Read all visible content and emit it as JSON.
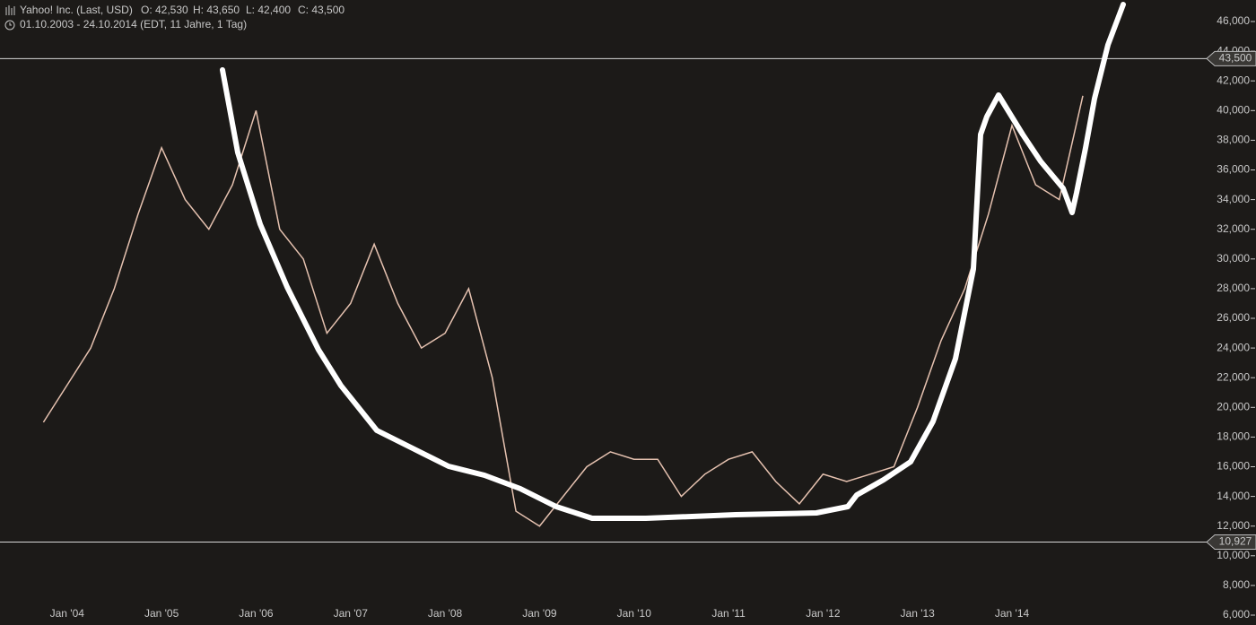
{
  "chart_data": {
    "type": "line",
    "title": "Yahoo! Inc. (Last, USD)",
    "ohlc": [
      "O: 42,530",
      "H: 43,650",
      "L: 42,400",
      "C: 43,500"
    ],
    "subtitle": "01.10.2003 - 24.10.2014 (EDT, 11 Jahre, 1 Tag)",
    "x": [
      2003.75,
      2004.0,
      2004.25,
      2004.5,
      2004.75,
      2005.0,
      2005.25,
      2005.5,
      2005.75,
      2006.0,
      2006.25,
      2006.5,
      2006.75,
      2007.0,
      2007.25,
      2007.5,
      2007.75,
      2008.0,
      2008.25,
      2008.5,
      2008.75,
      2009.0,
      2009.25,
      2009.5,
      2009.75,
      2010.0,
      2010.25,
      2010.5,
      2010.75,
      2011.0,
      2011.25,
      2011.5,
      2011.75,
      2012.0,
      2012.25,
      2012.5,
      2012.75,
      2013.0,
      2013.25,
      2013.5,
      2013.75,
      2014.0,
      2014.25,
      2014.5,
      2014.75
    ],
    "series": [
      {
        "name": "Yahoo! Inc.",
        "color": "#e6c2b0",
        "values": [
          19,
          21.5,
          24,
          28,
          33,
          37.5,
          34,
          32,
          35,
          40,
          32,
          30,
          25,
          27,
          31,
          27,
          24,
          25,
          28,
          22,
          13,
          12,
          14,
          16,
          17,
          16.5,
          16.5,
          14,
          15.5,
          16.5,
          17,
          15,
          13.5,
          15.5,
          15,
          15.5,
          16,
          20,
          24.5,
          28,
          33,
          39,
          35,
          34,
          41
        ]
      }
    ],
    "xlim": [
      2003.29,
      2016.06
    ],
    "xticks": [
      {
        "value": 2004,
        "label": "Jan '04"
      },
      {
        "value": 2005,
        "label": "Jan '05"
      },
      {
        "value": 2006,
        "label": "Jan '06"
      },
      {
        "value": 2007,
        "label": "Jan '07"
      },
      {
        "value": 2008,
        "label": "Jan '08"
      },
      {
        "value": 2009,
        "label": "Jan '09"
      },
      {
        "value": 2010,
        "label": "Jan '10"
      },
      {
        "value": 2011,
        "label": "Jan '11"
      },
      {
        "value": 2012,
        "label": "Jan '12"
      },
      {
        "value": 2013,
        "label": "Jan '13"
      },
      {
        "value": 2014,
        "label": "Jan '14"
      }
    ],
    "ylim": [
      6,
      46
    ],
    "yticks": [
      {
        "value": 6,
        "label": "6,000"
      },
      {
        "value": 8,
        "label": "8,000"
      },
      {
        "value": 10,
        "label": "10,000"
      },
      {
        "value": 12,
        "label": "12,000"
      },
      {
        "value": 14,
        "label": "14,000"
      },
      {
        "value": 16,
        "label": "16,000"
      },
      {
        "value": 18,
        "label": "18,000"
      },
      {
        "value": 20,
        "label": "20,000"
      },
      {
        "value": 22,
        "label": "22,000"
      },
      {
        "value": 24,
        "label": "24,000"
      },
      {
        "value": 26,
        "label": "26,000"
      },
      {
        "value": 28,
        "label": "28,000"
      },
      {
        "value": 30,
        "label": "30,000"
      },
      {
        "value": 32,
        "label": "32,000"
      },
      {
        "value": 34,
        "label": "34,000"
      },
      {
        "value": 36,
        "label": "36,000"
      },
      {
        "value": 38,
        "label": "38,000"
      },
      {
        "value": 40,
        "label": "40,000"
      },
      {
        "value": 42,
        "label": "42,000"
      },
      {
        "value": 44,
        "label": "44,000"
      },
      {
        "value": 46,
        "label": "46,000"
      }
    ],
    "hlines": [
      {
        "value": 43.5,
        "label": "43,500"
      },
      {
        "value": 10.927,
        "label": "10,927"
      }
    ]
  }
}
